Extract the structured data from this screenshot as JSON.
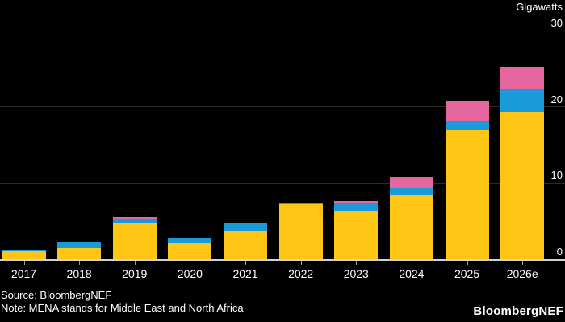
{
  "chart_data": {
    "type": "bar",
    "stacked": true,
    "unit_label": "Gigawatts",
    "categories": [
      "2017",
      "2018",
      "2019",
      "2020",
      "2021",
      "2022",
      "2023",
      "2024",
      "2025",
      "2026e"
    ],
    "series": [
      {
        "name": "yellow-segment",
        "color": "#FFC515",
        "values": [
          1.1,
          1.5,
          4.8,
          2.1,
          3.7,
          7.2,
          6.3,
          8.5,
          16.9,
          19.3
        ]
      },
      {
        "name": "blue-segment",
        "color": "#189BD8",
        "values": [
          0.2,
          0.8,
          0.5,
          0.6,
          1.1,
          0.2,
          1.1,
          0.9,
          1.3,
          3.0
        ]
      },
      {
        "name": "pink-segment",
        "color": "#E6679F",
        "values": [
          0,
          0,
          0.3,
          0,
          0,
          0,
          0.2,
          1.4,
          2.5,
          2.9
        ]
      }
    ],
    "ylim": [
      0,
      30
    ],
    "yticks": [
      0,
      10,
      20,
      30
    ],
    "legend": "none",
    "grid": "horizontal"
  },
  "footer": {
    "source": "Source: BloombergNEF",
    "note": "Note: MENA stands for Middle East and North Africa",
    "brand": "BloombergNEF"
  },
  "colors": {
    "background": "#000000",
    "text": "#ffffff",
    "gridline_minor": "#2b2b2b",
    "gridline_top": "#545454",
    "axis_baseline": "#d2d2d2",
    "bar_yellow": "#FFC515",
    "bar_blue": "#189BD8",
    "bar_pink": "#E6679F"
  }
}
